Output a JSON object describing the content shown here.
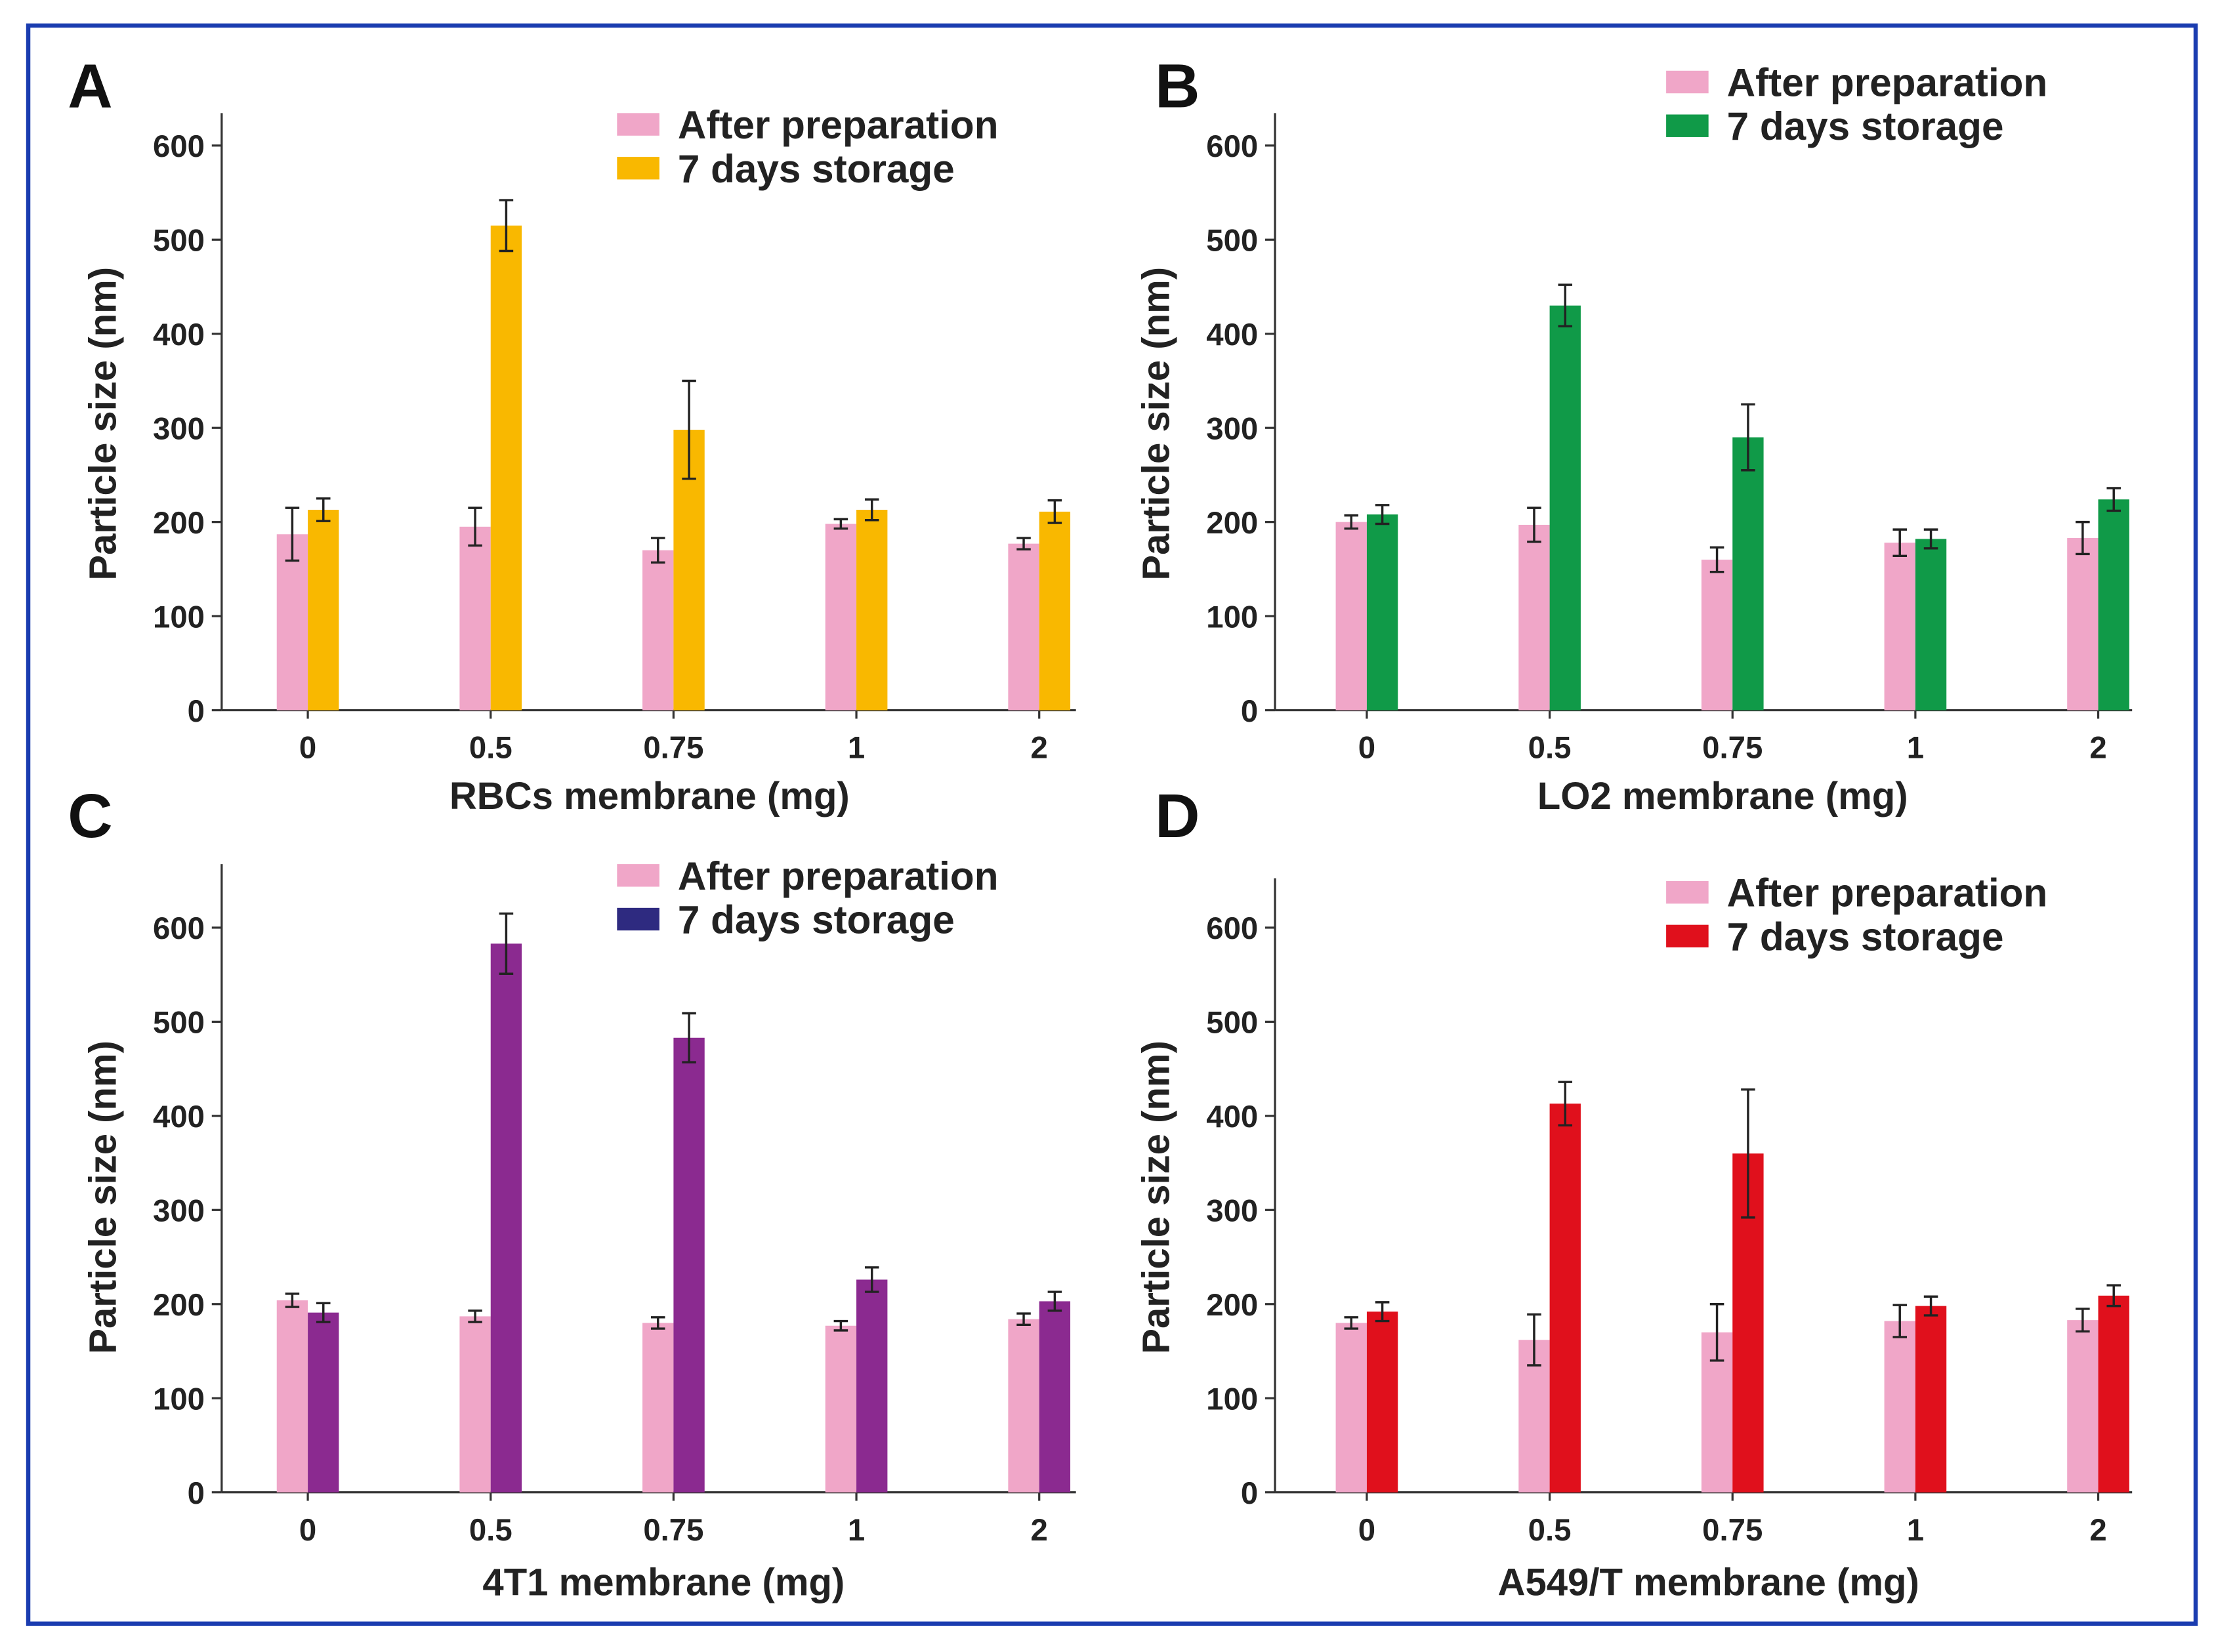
{
  "chart_data": [
    {
      "type": "bar",
      "panel": "A",
      "categories": [
        "0",
        "0.5",
        "0.75",
        "1",
        "2"
      ],
      "xlabel": "RBCs membrane  (mg)",
      "ylabel": "Particle size (nm)",
      "ylim": [
        0,
        600
      ],
      "yticks": [
        0,
        100,
        200,
        300,
        400,
        500,
        600
      ],
      "legend_position": "top-right",
      "series": [
        {
          "name": "After preparation",
          "color": "#f0a6c8",
          "values": [
            187,
            195,
            170,
            198,
            177
          ],
          "errors": [
            28,
            20,
            13,
            5,
            6
          ]
        },
        {
          "name": "7 days storage",
          "color": "#f9b800",
          "legend_color": "#f9b800",
          "values": [
            213,
            515,
            298,
            213,
            211
          ],
          "errors": [
            12,
            27,
            52,
            11,
            12
          ]
        }
      ]
    },
    {
      "type": "bar",
      "panel": "B",
      "categories": [
        "0",
        "0.5",
        "0.75",
        "1",
        "2"
      ],
      "xlabel": "LO2 membrane  (mg)",
      "ylabel": "Particle size (nm)",
      "ylim": [
        0,
        600
      ],
      "yticks": [
        0,
        100,
        200,
        300,
        400,
        500,
        600
      ],
      "legend_position": "top-right",
      "series": [
        {
          "name": "After preparation",
          "color": "#f0a6c8",
          "values": [
            200,
            197,
            160,
            178,
            183
          ],
          "errors": [
            7,
            18,
            13,
            14,
            17
          ]
        },
        {
          "name": "7 days storage",
          "color": "#109a48",
          "legend_color": "#109a48",
          "values": [
            208,
            430,
            290,
            182,
            224
          ],
          "errors": [
            10,
            22,
            35,
            10,
            12
          ]
        }
      ]
    },
    {
      "type": "bar",
      "panel": "C",
      "categories": [
        "0",
        "0.5",
        "0.75",
        "1",
        "2"
      ],
      "xlabel": "4T1 membrane  (mg)",
      "ylabel": "Particle size (nm)",
      "ylim": [
        0,
        600
      ],
      "yticks": [
        0,
        100,
        200,
        300,
        400,
        500,
        600
      ],
      "legend_position": "top-right",
      "series": [
        {
          "name": "After preparation",
          "color": "#f0a6c8",
          "values": [
            204,
            187,
            180,
            177,
            184
          ],
          "errors": [
            7,
            6,
            6,
            5,
            6
          ]
        },
        {
          "name": "7 days storage",
          "color": "#8b2a90",
          "legend_color": "#2e2a80",
          "values": [
            191,
            583,
            483,
            226,
            203
          ],
          "errors": [
            10,
            32,
            26,
            13,
            10
          ]
        }
      ]
    },
    {
      "type": "bar",
      "panel": "D",
      "categories": [
        "0",
        "0.5",
        "0.75",
        "1",
        "2"
      ],
      "xlabel": "A549/T membrane  (mg)",
      "ylabel": "Particle size (nm)",
      "ylim": [
        0,
        600
      ],
      "yticks": [
        0,
        100,
        200,
        300,
        400,
        500,
        600
      ],
      "legend_position": "top-right",
      "series": [
        {
          "name": "After preparation",
          "color": "#f0a6c8",
          "values": [
            180,
            162,
            170,
            182,
            183
          ],
          "errors": [
            6,
            27,
            30,
            17,
            12
          ]
        },
        {
          "name": "7 days storage",
          "color": "#e0101c",
          "legend_color": "#e0101c",
          "values": [
            192,
            413,
            360,
            198,
            209
          ],
          "errors": [
            10,
            23,
            68,
            10,
            11
          ]
        }
      ]
    }
  ],
  "frame_color": "#1a3cb0"
}
